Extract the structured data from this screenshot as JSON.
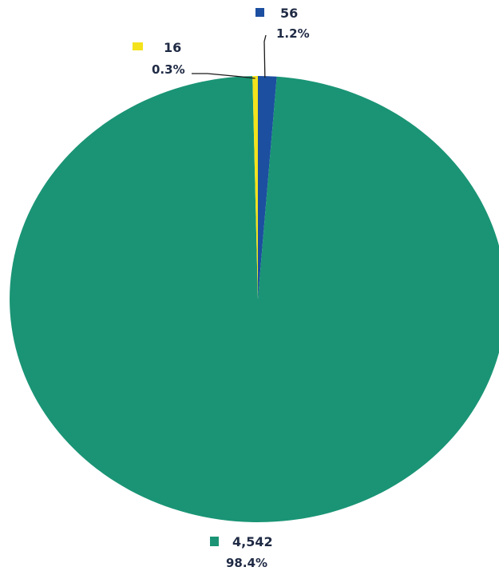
{
  "chart_data": {
    "type": "pie",
    "slices": [
      {
        "value": 56,
        "value_label": "56",
        "percent_label": "1.2%",
        "color": "#1c4fa0"
      },
      {
        "value": 4542,
        "value_label": "4,542",
        "percent_label": "98.4%",
        "color": "#1a9475"
      },
      {
        "value": 16,
        "value_label": "16",
        "percent_label": "0.3%",
        "color": "#f4e21c"
      }
    ],
    "start_angle_deg": 0,
    "direction": "clockwise",
    "legend": "none",
    "labels": "outside with leader lines"
  }
}
